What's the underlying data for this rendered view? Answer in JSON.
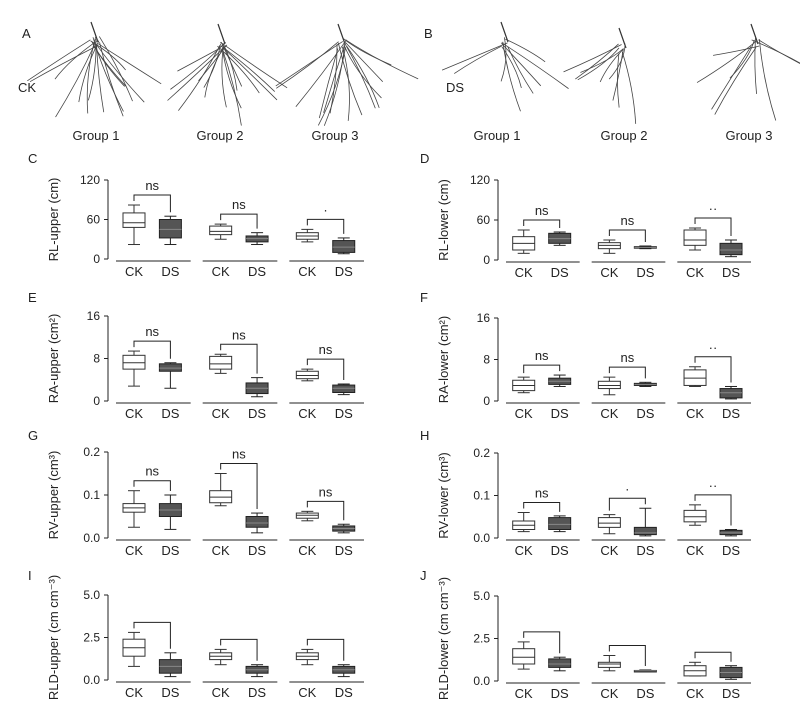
{
  "roots": {
    "panel_A": {
      "letter": "A",
      "row_label": "CK",
      "groups": [
        "Group 1",
        "Group 2",
        "Group 3"
      ]
    },
    "panel_B": {
      "letter": "B",
      "row_label": "DS",
      "groups": [
        "Group 1",
        "Group 2",
        "Group 3"
      ]
    }
  },
  "colors": {
    "ck_box": "#ffffff",
    "ds_box": "#555555",
    "axis": "#222222"
  },
  "chart_data": [
    {
      "panel": "C",
      "type": "box",
      "ylabel": "RL-upper (cm)",
      "yticks": [
        "0",
        "60",
        "120"
      ],
      "ylim": [
        0,
        120
      ],
      "categories": [
        "CK",
        "DS"
      ],
      "groups": [
        {
          "CK": {
            "min": 22,
            "q1": 48,
            "median": 55,
            "q3": 70,
            "max": 82
          },
          "DS": {
            "min": 22,
            "q1": 32,
            "median": 45,
            "q3": 60,
            "max": 65
          },
          "sig": "ns"
        },
        {
          "CK": {
            "min": 30,
            "q1": 37,
            "median": 42,
            "q3": 50,
            "max": 53
          },
          "DS": {
            "min": 22,
            "q1": 26,
            "median": 31,
            "q3": 35,
            "max": 40
          },
          "sig": "ns"
        },
        {
          "CK": {
            "min": 26,
            "q1": 30,
            "median": 35,
            "q3": 40,
            "max": 45
          },
          "DS": {
            "min": 8,
            "q1": 10,
            "median": 18,
            "q3": 28,
            "max": 32
          },
          "sig": "·"
        }
      ]
    },
    {
      "panel": "D",
      "type": "box",
      "ylabel": "RL-lower (cm)",
      "yticks": [
        "0",
        "60",
        "120"
      ],
      "ylim": [
        0,
        120
      ],
      "categories": [
        "CK",
        "DS"
      ],
      "groups": [
        {
          "CK": {
            "min": 10,
            "q1": 15,
            "median": 25,
            "q3": 35,
            "max": 45
          },
          "DS": {
            "min": 22,
            "q1": 25,
            "median": 32,
            "q3": 40,
            "max": 42
          },
          "sig": "ns"
        },
        {
          "CK": {
            "min": 10,
            "q1": 17,
            "median": 22,
            "q3": 26,
            "max": 30
          },
          "DS": {
            "min": 17,
            "q1": 18,
            "median": 19,
            "q3": 20,
            "max": 21
          },
          "sig": "ns"
        },
        {
          "CK": {
            "min": 15,
            "q1": 22,
            "median": 30,
            "q3": 45,
            "max": 48
          },
          "DS": {
            "min": 5,
            "q1": 8,
            "median": 15,
            "q3": 25,
            "max": 30
          },
          "sig": "··"
        }
      ]
    },
    {
      "panel": "E",
      "type": "box",
      "ylabel": "RA-upper (cm²)",
      "yticks": [
        "0",
        "8",
        "16"
      ],
      "ylim": [
        0,
        16
      ],
      "categories": [
        "CK",
        "DS"
      ],
      "groups": [
        {
          "CK": {
            "min": 2.8,
            "q1": 6.0,
            "median": 7.2,
            "q3": 8.6,
            "max": 9.4
          },
          "DS": {
            "min": 2.4,
            "q1": 5.6,
            "median": 6.2,
            "q3": 7.0,
            "max": 7.2
          },
          "sig": "ns"
        },
        {
          "CK": {
            "min": 5.2,
            "q1": 6.0,
            "median": 7.0,
            "q3": 8.4,
            "max": 8.8
          },
          "DS": {
            "min": 0.8,
            "q1": 1.4,
            "median": 2.4,
            "q3": 3.4,
            "max": 4.4
          },
          "sig": "ns"
        },
        {
          "CK": {
            "min": 3.8,
            "q1": 4.2,
            "median": 4.8,
            "q3": 5.6,
            "max": 6.0
          },
          "DS": {
            "min": 1.2,
            "q1": 1.6,
            "median": 2.4,
            "q3": 3.0,
            "max": 3.2
          },
          "sig": "ns"
        }
      ]
    },
    {
      "panel": "F",
      "type": "box",
      "ylabel": "RA-lower (cm²)",
      "yticks": [
        "0",
        "8",
        "16"
      ],
      "ylim": [
        0,
        16
      ],
      "categories": [
        "CK",
        "DS"
      ],
      "groups": [
        {
          "CK": {
            "min": 1.6,
            "q1": 2.0,
            "median": 3.0,
            "q3": 4.0,
            "max": 4.6
          },
          "DS": {
            "min": 2.8,
            "q1": 3.2,
            "median": 3.8,
            "q3": 4.4,
            "max": 5.0
          },
          "sig": "ns"
        },
        {
          "CK": {
            "min": 1.2,
            "q1": 2.4,
            "median": 3.0,
            "q3": 3.8,
            "max": 4.6
          },
          "DS": {
            "min": 2.8,
            "q1": 3.0,
            "median": 3.2,
            "q3": 3.4,
            "max": 3.6
          },
          "sig": "ns"
        },
        {
          "CK": {
            "min": 2.8,
            "q1": 3.0,
            "median": 4.4,
            "q3": 6.0,
            "max": 6.6
          },
          "DS": {
            "min": 0.4,
            "q1": 0.6,
            "median": 1.6,
            "q3": 2.4,
            "max": 2.8
          },
          "sig": "··"
        }
      ]
    },
    {
      "panel": "G",
      "type": "box",
      "ylabel": "RV-upper (cm³)",
      "yticks": [
        "0.0",
        "0.1",
        "0.2"
      ],
      "ylim": [
        0,
        0.2
      ],
      "categories": [
        "CK",
        "DS"
      ],
      "groups": [
        {
          "CK": {
            "min": 0.025,
            "q1": 0.06,
            "median": 0.07,
            "q3": 0.08,
            "max": 0.11
          },
          "DS": {
            "min": 0.02,
            "q1": 0.05,
            "median": 0.065,
            "q3": 0.08,
            "max": 0.1
          },
          "sig": "ns"
        },
        {
          "CK": {
            "min": 0.075,
            "q1": 0.082,
            "median": 0.095,
            "q3": 0.11,
            "max": 0.15
          },
          "DS": {
            "min": 0.012,
            "q1": 0.025,
            "median": 0.035,
            "q3": 0.05,
            "max": 0.058
          },
          "sig": "ns"
        },
        {
          "CK": {
            "min": 0.04,
            "q1": 0.046,
            "median": 0.053,
            "q3": 0.058,
            "max": 0.062
          },
          "DS": {
            "min": 0.012,
            "q1": 0.016,
            "median": 0.022,
            "q3": 0.028,
            "max": 0.032
          },
          "sig": "ns"
        }
      ]
    },
    {
      "panel": "H",
      "type": "box",
      "ylabel": "RV-lower (cm³)",
      "yticks": [
        "0.0",
        "0.1",
        "0.2"
      ],
      "ylim": [
        0,
        0.2
      ],
      "categories": [
        "CK",
        "DS"
      ],
      "groups": [
        {
          "CK": {
            "min": 0.015,
            "q1": 0.02,
            "median": 0.03,
            "q3": 0.04,
            "max": 0.06
          },
          "DS": {
            "min": 0.015,
            "q1": 0.02,
            "median": 0.032,
            "q3": 0.048,
            "max": 0.052
          },
          "sig": "ns"
        },
        {
          "CK": {
            "min": 0.01,
            "q1": 0.025,
            "median": 0.035,
            "q3": 0.048,
            "max": 0.055
          },
          "DS": {
            "min": 0.005,
            "q1": 0.008,
            "median": 0.012,
            "q3": 0.025,
            "max": 0.07
          },
          "sig": "·"
        },
        {
          "CK": {
            "min": 0.03,
            "q1": 0.038,
            "median": 0.05,
            "q3": 0.065,
            "max": 0.078
          },
          "DS": {
            "min": 0.005,
            "q1": 0.008,
            "median": 0.012,
            "q3": 0.018,
            "max": 0.02
          },
          "sig": "··"
        }
      ]
    },
    {
      "panel": "I",
      "type": "box",
      "ylabel": "RLD-upper (cm cm⁻³)",
      "yticks": [
        "0.0",
        "2.5",
        "5.0"
      ],
      "ylim": [
        0,
        5
      ],
      "categories": [
        "CK",
        "DS"
      ],
      "groups": [
        {
          "CK": {
            "min": 0.8,
            "q1": 1.4,
            "median": 1.9,
            "q3": 2.4,
            "max": 2.8
          },
          "DS": {
            "min": 0.2,
            "q1": 0.4,
            "median": 0.8,
            "q3": 1.2,
            "max": 1.6
          },
          "sig": ""
        },
        {
          "CK": {
            "min": 0.9,
            "q1": 1.2,
            "median": 1.4,
            "q3": 1.6,
            "max": 1.8
          },
          "DS": {
            "min": 0.2,
            "q1": 0.4,
            "median": 0.6,
            "q3": 0.8,
            "max": 0.9
          },
          "sig": ""
        },
        {
          "CK": {
            "min": 0.9,
            "q1": 1.2,
            "median": 1.4,
            "q3": 1.6,
            "max": 1.8
          },
          "DS": {
            "min": 0.2,
            "q1": 0.4,
            "median": 0.6,
            "q3": 0.8,
            "max": 0.9
          },
          "sig": ""
        }
      ]
    },
    {
      "panel": "J",
      "type": "box",
      "ylabel": "RLD-lower (cm cm⁻³)",
      "yticks": [
        "0.0",
        "2.5",
        "5.0"
      ],
      "ylim": [
        0,
        5
      ],
      "categories": [
        "CK",
        "DS"
      ],
      "groups": [
        {
          "CK": {
            "min": 0.7,
            "q1": 1.0,
            "median": 1.4,
            "q3": 1.9,
            "max": 2.3
          },
          "DS": {
            "min": 0.6,
            "q1": 0.8,
            "median": 1.0,
            "q3": 1.3,
            "max": 1.4
          },
          "sig": ""
        },
        {
          "CK": {
            "min": 0.6,
            "q1": 0.8,
            "median": 1.0,
            "q3": 1.1,
            "max": 1.5
          },
          "DS": {
            "min": 0.55,
            "q1": 0.58,
            "median": 0.6,
            "q3": 0.62,
            "max": 0.65
          },
          "sig": ""
        },
        {
          "CK": {
            "min": 0.3,
            "q1": 0.3,
            "median": 0.6,
            "q3": 0.9,
            "max": 1.1
          },
          "DS": {
            "min": 0.1,
            "q1": 0.2,
            "median": 0.5,
            "q3": 0.8,
            "max": 0.9
          },
          "sig": ""
        }
      ]
    }
  ]
}
